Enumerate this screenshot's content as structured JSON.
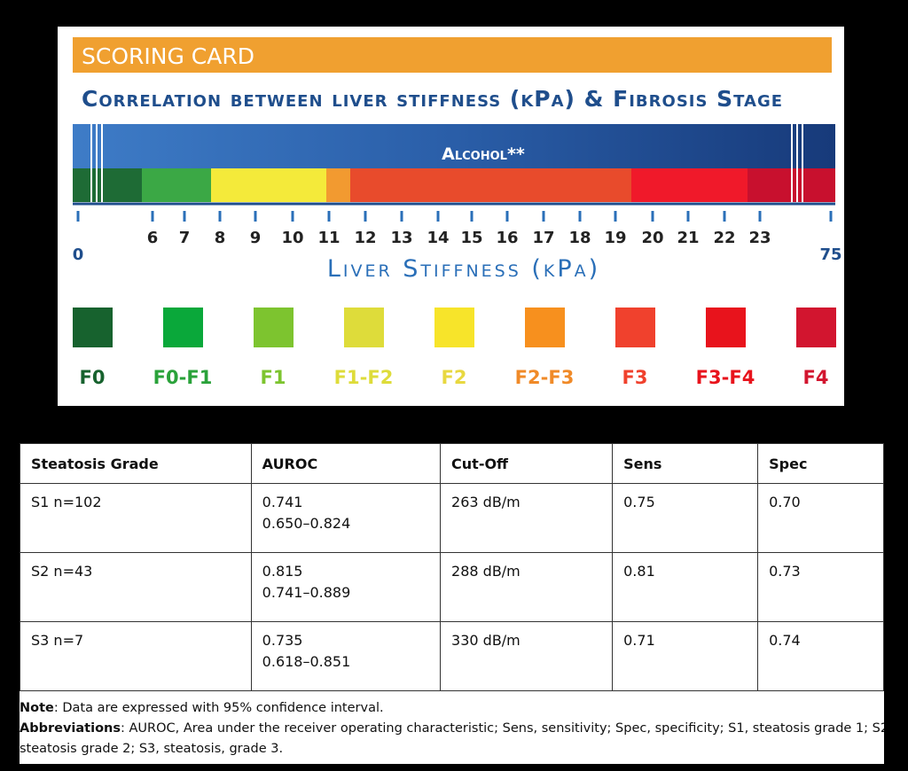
{
  "scoring_card": {
    "banner": "SCORING CARD",
    "title": "Correlation between liver stiffness (kPa) & Fibrosis Stage",
    "bar_label": "Alcohol**",
    "scale_ticks": [
      0,
      6,
      7,
      8,
      9,
      10,
      11,
      12,
      13,
      14,
      15,
      16,
      17,
      18,
      19,
      20,
      21,
      22,
      23,
      75
    ],
    "axis_label": "Liver Stiffness (kPa)",
    "stages": [
      "F0",
      "F0-F1",
      "F1",
      "F1-F2",
      "F2",
      "F2-F3",
      "F3",
      "F3-F4",
      "F4"
    ]
  },
  "table": {
    "header": [
      "Steatosis Grade",
      "AUROC",
      "Cut-Off",
      "Sens",
      "Spec"
    ],
    "rows": [
      [
        [
          "S1 n=102"
        ],
        [
          "0.741",
          "0.650–0.824"
        ],
        [
          "263 dB/m"
        ],
        [
          "0.75"
        ],
        [
          "0.70"
        ]
      ],
      [
        [
          "S2 n=43"
        ],
        [
          "0.815",
          "0.741–0.889"
        ],
        [
          "288 dB/m"
        ],
        [
          "0.81"
        ],
        [
          "0.73"
        ]
      ],
      [
        [
          "S3 n=7"
        ],
        [
          "0.735",
          "0.618–0.851"
        ],
        [
          "330 dB/m"
        ],
        [
          "0.71"
        ],
        [
          "0.74"
        ]
      ]
    ]
  },
  "notes": {
    "note_label": "Note",
    "note_text": ": Data are expressed with 95% confidence interval.",
    "abbr_label": "Abbreviations",
    "abbr_text": ": AUROC, Area under the receiver operating characteristic; Sens, sensitivity; Spec, specificity; S1, steatosis grade 1; S2, steatosis grade 2; S3, steatosis, grade 3."
  }
}
